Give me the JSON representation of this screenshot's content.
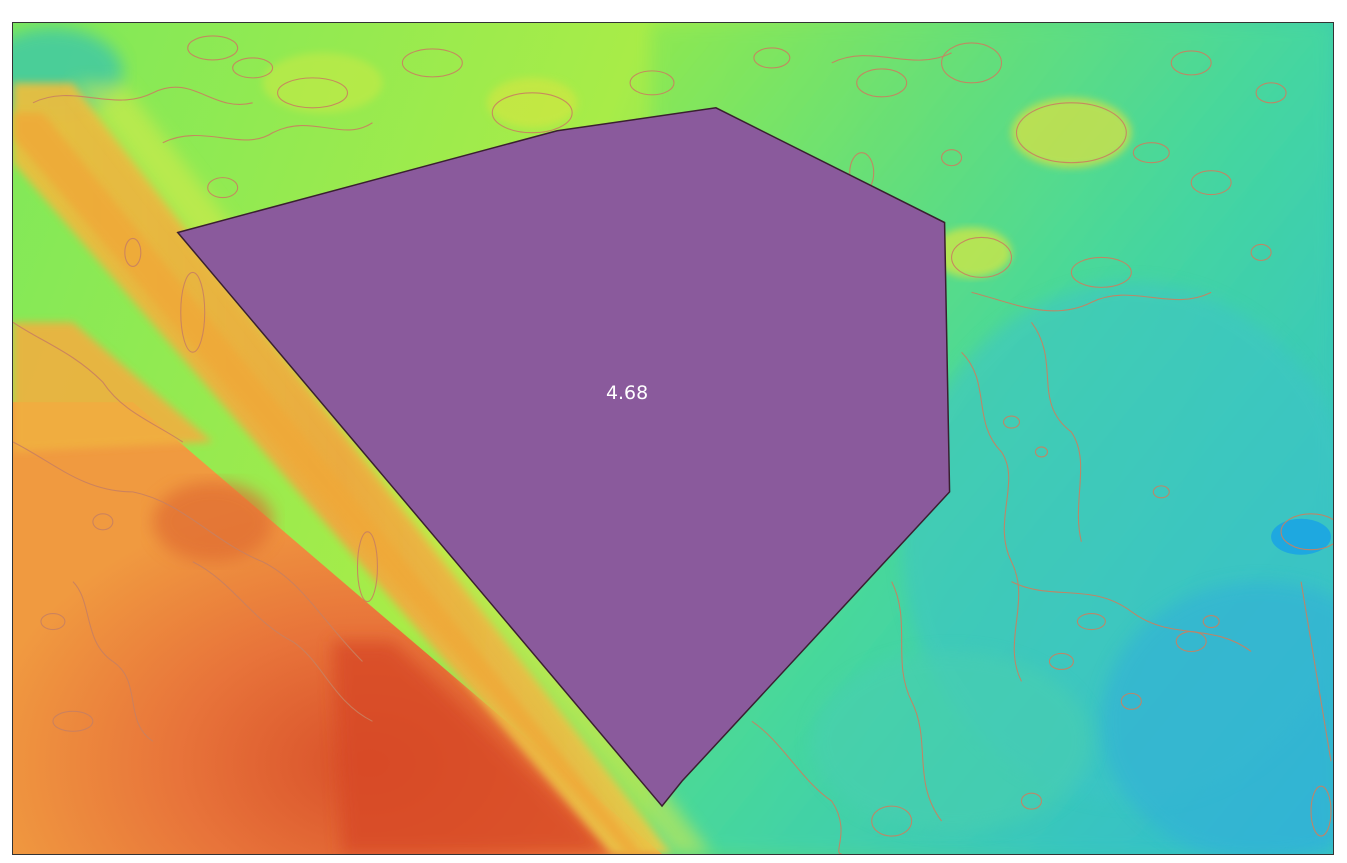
{
  "map": {
    "feature_label": "4.68",
    "colors": {
      "low": "#2fb3e0",
      "mid_low": "#35d3a8",
      "mid": "#7fe85a",
      "mid_high": "#d8e640",
      "high": "#f0a83a",
      "very_high": "#e8743a",
      "peak": "#d8502a",
      "contour": "#c98060",
      "polygon_fill": "#8a5a9c",
      "polygon_outline": "#3a1f30",
      "label_text": "#ffffff"
    },
    "layers": [
      "elevation-raster",
      "contour-lines",
      "measured-polygon"
    ]
  }
}
